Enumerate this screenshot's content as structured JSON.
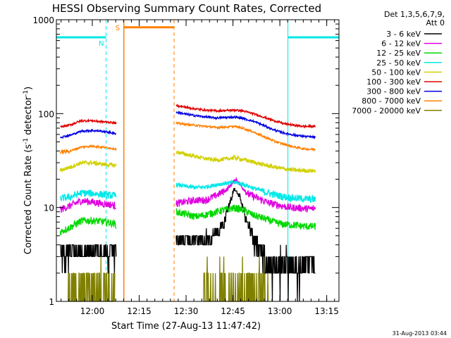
{
  "chart_data": {
    "type": "line",
    "title": "HESSI Observing Summary Count Rates, Corrected",
    "xlabel": "Start Time (27-Aug-13 11:47:42)",
    "ylabel_parts": [
      "Corrected Count Rate (s",
      "-1",
      " detector",
      "-1",
      ")"
    ],
    "yscale": "log",
    "ylim": [
      1,
      1000
    ],
    "xlim_min": [
      -1.5,
      107
    ],
    "x_ticks": [
      {
        "min": 12.3,
        "label": "12:00"
      },
      {
        "min": 30.3,
        "label": "12:15"
      },
      {
        "min": 48.3,
        "label": "12:30"
      },
      {
        "min": 66.3,
        "label": "12:45"
      },
      {
        "min": 84.3,
        "label": "13:00"
      },
      {
        "min": 102.3,
        "label": "13:15"
      }
    ],
    "y_ticks": [
      {
        "value": 1,
        "label": "1"
      },
      {
        "value": 10,
        "label": "10"
      },
      {
        "value": 100,
        "label": "100"
      },
      {
        "value": 1000,
        "label": "1000"
      }
    ],
    "legend": {
      "placement": "right",
      "header": [
        "Det 1,3,5,6,7,9,",
        "Att 0"
      ],
      "entries": [
        {
          "name": "3 - 6 keV",
          "color": "#000000"
        },
        {
          "name": "6 - 12 keV",
          "color": "#e000e0"
        },
        {
          "name": "12 - 25 keV",
          "color": "#00d800"
        },
        {
          "name": "25 - 50 keV",
          "color": "#00e8e8"
        },
        {
          "name": "50 - 100 keV",
          "color": "#d0d000"
        },
        {
          "name": "100 - 300 keV",
          "color": "#e00000"
        },
        {
          "name": "300 - 800 keV",
          "color": "#0000e0"
        },
        {
          "name": "800 - 7000 keV",
          "color": "#ff8000"
        },
        {
          "name": "7000 - 20000 keV",
          "color": "#808000"
        }
      ]
    },
    "series": [
      {
        "name": "3 - 6 keV",
        "color": "#000000",
        "segments": [
          [
            [
              0,
              3.2
            ],
            [
              5,
              3.4
            ],
            [
              9,
              3.3
            ],
            [
              13,
              3.5
            ],
            [
              17,
              3.1
            ],
            [
              21.5,
              3.0
            ]
          ],
          [
            [
              44.5,
              4.2
            ],
            [
              48,
              4.6
            ],
            [
              52,
              4.2
            ],
            [
              56,
              4.8
            ],
            [
              60,
              5.2
            ],
            [
              63,
              7.0
            ],
            [
              65.5,
              12
            ],
            [
              67,
              16
            ],
            [
              69,
              13
            ],
            [
              71,
              8
            ],
            [
              74,
              4.6
            ],
            [
              77,
              3.4
            ],
            [
              80,
              2.6
            ],
            [
              83,
              2.5
            ],
            [
              87,
              2.4
            ],
            [
              91,
              2.4
            ],
            [
              95,
              2.4
            ],
            [
              98,
              2.4
            ]
          ]
        ]
      },
      {
        "name": "6 - 12 keV",
        "color": "#e000e0",
        "segments": [
          [
            [
              0,
              9.5
            ],
            [
              4,
              10.5
            ],
            [
              8,
              11.8
            ],
            [
              12,
              11.5
            ],
            [
              16,
              11.0
            ],
            [
              19,
              10.8
            ],
            [
              21.5,
              10.4
            ]
          ],
          [
            [
              44.5,
              11.0
            ],
            [
              48,
              11.5
            ],
            [
              52,
              12.0
            ],
            [
              56,
              12.0
            ],
            [
              60,
              13.5
            ],
            [
              64,
              15.5
            ],
            [
              66,
              18
            ],
            [
              67.5,
              20
            ],
            [
              69,
              17.5
            ],
            [
              72,
              14
            ],
            [
              76,
              12.5
            ],
            [
              80,
              11.2
            ],
            [
              84,
              10.6
            ],
            [
              88,
              10.0
            ],
            [
              92,
              9.9
            ],
            [
              95,
              9.7
            ],
            [
              98,
              9.8
            ]
          ]
        ]
      },
      {
        "name": "12 - 25 keV",
        "color": "#00d800",
        "segments": [
          [
            [
              0,
              5.5
            ],
            [
              4,
              6.2
            ],
            [
              8,
              7.2
            ],
            [
              12,
              7.3
            ],
            [
              16,
              7.1
            ],
            [
              19,
              6.9
            ],
            [
              21.5,
              6.6
            ]
          ],
          [
            [
              44.5,
              9.0
            ],
            [
              48,
              8.5
            ],
            [
              52,
              8.0
            ],
            [
              56,
              8.4
            ],
            [
              60,
              9.0
            ],
            [
              64,
              9.6
            ],
            [
              67,
              9.9
            ],
            [
              70,
              9.5
            ],
            [
              74,
              8.3
            ],
            [
              78,
              7.7
            ],
            [
              82,
              7.0
            ],
            [
              86,
              6.6
            ],
            [
              90,
              6.5
            ],
            [
              94,
              6.3
            ],
            [
              98,
              6.3
            ]
          ]
        ]
      },
      {
        "name": "25 - 50 keV",
        "color": "#00e8e8",
        "segments": [
          [
            [
              0,
              12.5
            ],
            [
              4,
              13.0
            ],
            [
              8,
              14.3
            ],
            [
              12,
              14.2
            ],
            [
              16,
              13.8
            ],
            [
              19,
              13.5
            ],
            [
              21.5,
              13.4
            ]
          ],
          [
            [
              44.5,
              17.5
            ],
            [
              48,
              16.8
            ],
            [
              52,
              16.3
            ],
            [
              56,
              16.6
            ],
            [
              60,
              17.5
            ],
            [
              64,
              18.2
            ],
            [
              67,
              18.5
            ],
            [
              70,
              17.8
            ],
            [
              74,
              16.2
            ],
            [
              78,
              14.8
            ],
            [
              82,
              13.8
            ],
            [
              86,
              13.0
            ],
            [
              90,
              12.6
            ],
            [
              94,
              12.4
            ],
            [
              98,
              12.2
            ]
          ]
        ]
      },
      {
        "name": "50 - 100 keV",
        "color": "#d0d000",
        "segments": [
          [
            [
              0,
              25
            ],
            [
              4,
              27
            ],
            [
              8,
              30
            ],
            [
              12,
              30
            ],
            [
              16,
              29
            ],
            [
              19,
              28.5
            ],
            [
              21.5,
              28
            ]
          ],
          [
            [
              44.5,
              39
            ],
            [
              48,
              37
            ],
            [
              52,
              35
            ],
            [
              56,
              33
            ],
            [
              60,
              32
            ],
            [
              64,
              33
            ],
            [
              67,
              34
            ],
            [
              70,
              32.5
            ],
            [
              74,
              30.5
            ],
            [
              78,
              28.5
            ],
            [
              82,
              27
            ],
            [
              86,
              25.8
            ],
            [
              90,
              25
            ],
            [
              94,
              24.8
            ],
            [
              98,
              24.5
            ]
          ]
        ]
      },
      {
        "name": "100 - 300 keV",
        "color": "#e00000",
        "segments": [
          [
            [
              0,
              72
            ],
            [
              4,
              76
            ],
            [
              8,
              84
            ],
            [
              12,
              84
            ],
            [
              16,
              82
            ],
            [
              19,
              81
            ],
            [
              21.5,
              79
            ]
          ],
          [
            [
              44.5,
              122
            ],
            [
              48,
              117
            ],
            [
              52,
              112
            ],
            [
              56,
              109
            ],
            [
              60,
              107
            ],
            [
              64,
              108
            ],
            [
              67,
              109
            ],
            [
              70,
              107
            ],
            [
              74,
              100
            ],
            [
              78,
              92
            ],
            [
              82,
              84
            ],
            [
              86,
              78
            ],
            [
              90,
              75
            ],
            [
              94,
              73
            ],
            [
              98,
              73
            ]
          ]
        ]
      },
      {
        "name": "300 - 800 keV",
        "color": "#0000e0",
        "segments": [
          [
            [
              0,
              56
            ],
            [
              4,
              59
            ],
            [
              8,
              65
            ],
            [
              12,
              66
            ],
            [
              16,
              65
            ],
            [
              19,
              63
            ],
            [
              21.5,
              61
            ]
          ],
          [
            [
              44.5,
              103
            ],
            [
              48,
              99
            ],
            [
              52,
              95
            ],
            [
              56,
              92
            ],
            [
              60,
              90
            ],
            [
              64,
              91
            ],
            [
              67,
              92
            ],
            [
              70,
              89
            ],
            [
              74,
              83
            ],
            [
              78,
              75
            ],
            [
              82,
              67
            ],
            [
              86,
              62
            ],
            [
              90,
              59
            ],
            [
              94,
              57
            ],
            [
              98,
              56
            ]
          ]
        ]
      },
      {
        "name": "800 - 7000 keV",
        "color": "#ff8000",
        "segments": [
          [
            [
              0,
              39
            ],
            [
              4,
              40
            ],
            [
              8,
              44
            ],
            [
              12,
              45
            ],
            [
              16,
              44
            ],
            [
              19,
              43
            ],
            [
              21.5,
              42
            ]
          ],
          [
            [
              44.5,
              79
            ],
            [
              48,
              77
            ],
            [
              52,
              75
            ],
            [
              56,
              73
            ],
            [
              60,
              71
            ],
            [
              64,
              72
            ],
            [
              67,
              73
            ],
            [
              70,
              70
            ],
            [
              74,
              64
            ],
            [
              78,
              57
            ],
            [
              82,
              51
            ],
            [
              86,
              47
            ],
            [
              90,
              44
            ],
            [
              94,
              42
            ],
            [
              98,
              41.5
            ]
          ]
        ]
      },
      {
        "name": "7000 - 20000 keV",
        "color": "#808000",
        "segments": [
          [
            [
              3,
              1.6
            ],
            [
              6,
              1.9
            ],
            [
              9,
              2.0
            ],
            [
              12,
              1.8
            ],
            [
              15,
              1.6
            ],
            [
              18,
              1.9
            ],
            [
              21,
              1.5
            ]
          ],
          [
            [
              55,
              1.5
            ],
            [
              58,
              1.8
            ],
            [
              61,
              1.9
            ],
            [
              64,
              1.6
            ],
            [
              67,
              2.0
            ],
            [
              70,
              1.8
            ],
            [
              73,
              1.6
            ],
            [
              76,
              1.8
            ],
            [
              80,
              1.5
            ]
          ]
        ]
      }
    ],
    "annotations": {
      "night_markers": [
        {
          "label": "N",
          "start_min": -1.5,
          "end_min": 17.6,
          "level": 650,
          "color": "#00e8e8"
        },
        {
          "label": "",
          "start_min": 87.4,
          "end_min": 107,
          "level": 650,
          "color": "#00e8e8"
        }
      ],
      "saa_marker": {
        "label": "S",
        "start_min": 24.4,
        "end_min": 43.7,
        "level": 830,
        "color": "#ff8000"
      }
    }
  },
  "footer": {
    "timestamp": "31-Aug-2013 03:44"
  }
}
